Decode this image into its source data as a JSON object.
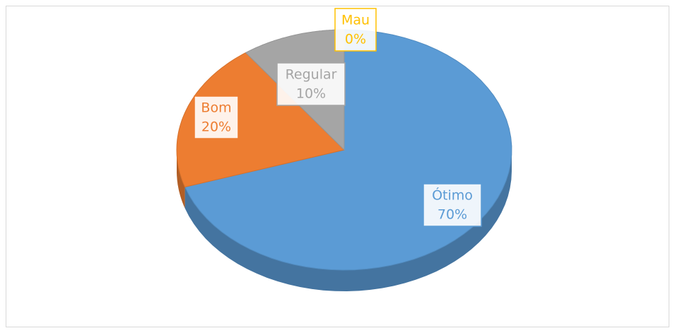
{
  "chart_data": {
    "type": "pie",
    "categories": [
      "Ótimo",
      "Bom",
      "Regular",
      "Mau"
    ],
    "values": [
      70,
      20,
      10,
      0
    ],
    "value_labels": [
      "70%",
      "20%",
      "10%",
      "0%"
    ],
    "colors": [
      "#5b9bd5",
      "#ed7d31",
      "#a5a5a5",
      "#ffc000"
    ]
  }
}
